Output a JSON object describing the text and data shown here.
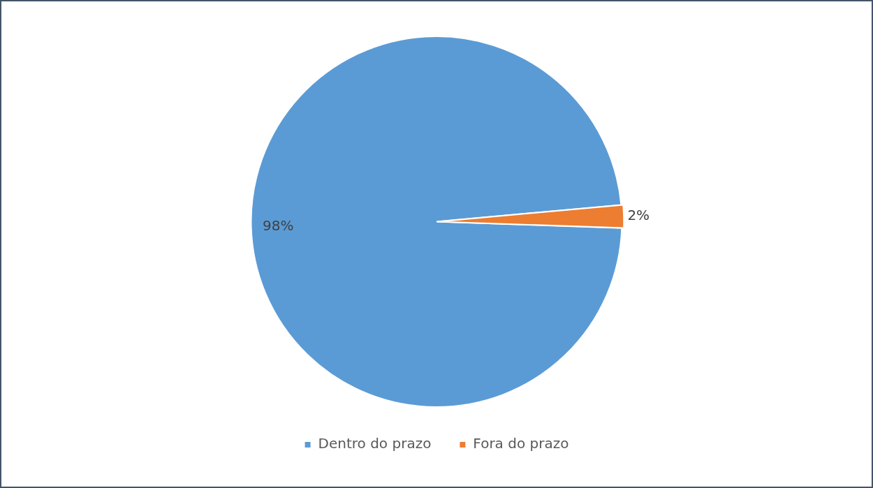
{
  "chart_data": {
    "type": "pie",
    "categories": [
      "Dentro do prazo",
      "Fora do prazo"
    ],
    "values": [
      98,
      2
    ],
    "colors": [
      "#5b9bd5",
      "#ed7d31"
    ],
    "value_labels": [
      "98%",
      "2%"
    ],
    "legend": "bottom"
  }
}
